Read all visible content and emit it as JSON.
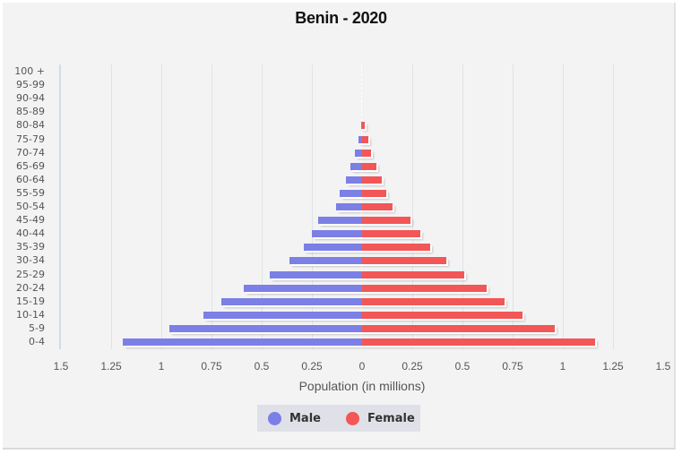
{
  "chart_data": {
    "type": "bar",
    "orientation": "horizontal",
    "subtype": "population-pyramid",
    "title": "Benin - 2020",
    "xlabel": "Population (in millions)",
    "ylabel": "",
    "xlim": [
      -1.5,
      1.5
    ],
    "x_tick_labels": [
      "1.5",
      "1.25",
      "1",
      "0.75",
      "0.5",
      "0.25",
      "0",
      "0.25",
      "0.5",
      "0.75",
      "1",
      "1.25",
      "1.5"
    ],
    "x_tick_values": [
      -1.5,
      -1.25,
      -1,
      -0.75,
      -0.5,
      -0.25,
      0,
      0.25,
      0.5,
      0.75,
      1,
      1.25,
      1.5
    ],
    "categories": [
      "100 +",
      "95-99",
      "90-94",
      "85-89",
      "80-84",
      "75-79",
      "70-74",
      "65-69",
      "60-64",
      "55-59",
      "50-54",
      "45-49",
      "40-44",
      "35-39",
      "30-34",
      "25-29",
      "20-24",
      "15-19",
      "10-14",
      "5-9",
      "0-4"
    ],
    "series": [
      {
        "name": "Male",
        "color": "#7b7fe6",
        "values": [
          0,
          0,
          0,
          0,
          0.005,
          0.02,
          0.035,
          0.06,
          0.08,
          0.11,
          0.13,
          0.22,
          0.25,
          0.29,
          0.36,
          0.46,
          0.59,
          0.7,
          0.79,
          0.96,
          1.19
        ]
      },
      {
        "name": "Female",
        "color": "#f25656",
        "values": [
          0,
          0,
          0,
          0,
          0.012,
          0.03,
          0.045,
          0.07,
          0.1,
          0.12,
          0.15,
          0.24,
          0.29,
          0.34,
          0.42,
          0.51,
          0.62,
          0.71,
          0.8,
          0.96,
          1.16
        ]
      }
    ],
    "grid": {
      "vertical": true,
      "horizontal": false
    },
    "legend_position": "bottom"
  },
  "legend": {
    "items": [
      {
        "label": "Male",
        "color": "#7b7fe6"
      },
      {
        "label": "Female",
        "color": "#f25656"
      }
    ]
  }
}
